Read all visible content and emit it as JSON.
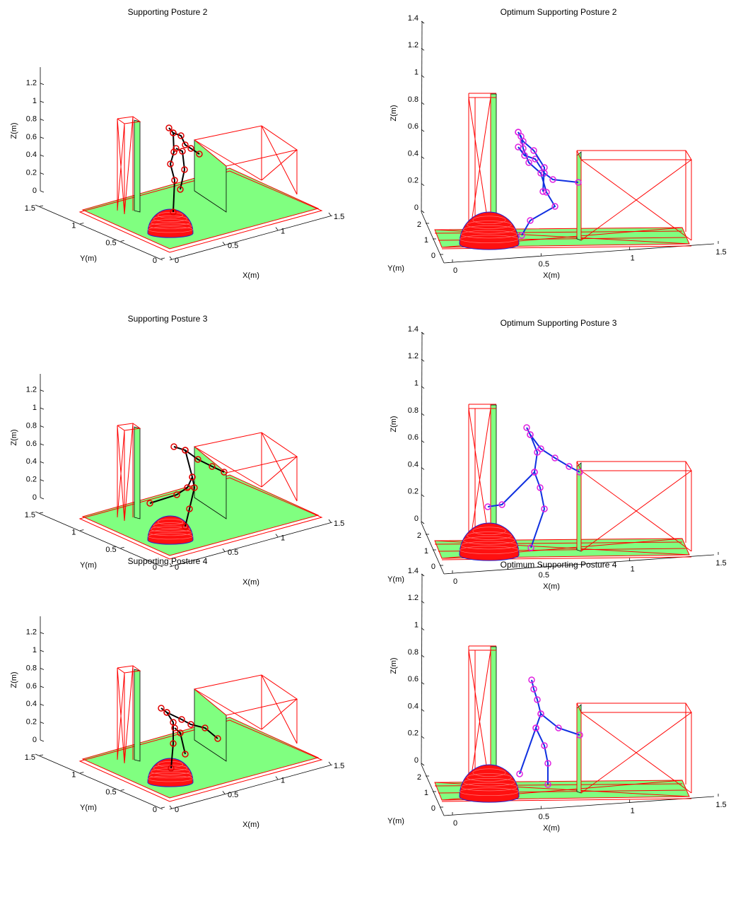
{
  "chart_data": [
    {
      "type": "line3d",
      "title": "Supporting Posture 2",
      "xlabel": "X(m)",
      "ylabel": "Y(m)",
      "zlabel": "Z(m)",
      "xlim": [
        0,
        1.5
      ],
      "ylim": [
        0,
        1.5
      ],
      "zlim": [
        0,
        1.3
      ],
      "xticks": [
        0,
        0.5,
        1,
        1.5
      ],
      "yticks": [
        0,
        0.5,
        1,
        1.5
      ],
      "zticks": [
        0,
        0.2,
        0.4,
        0.6,
        0.8,
        1,
        1.2
      ]
    },
    {
      "type": "line3d",
      "title": "Optimum Supporting Posture 2",
      "xlabel": "X(m)",
      "ylabel": "Y(m)",
      "zlabel": "Z(m)",
      "xlim": [
        0,
        1.5
      ],
      "ylim": [
        0,
        2
      ],
      "zlim": [
        0,
        1.4
      ],
      "xticks": [
        0,
        0.5,
        1,
        1.5
      ],
      "yticks": [
        0,
        1,
        2
      ],
      "zticks": [
        0,
        0.2,
        0.4,
        0.6,
        0.8,
        1,
        1.2,
        1.4
      ]
    },
    {
      "type": "line3d",
      "title": "Supporting Posture 3",
      "xlabel": "X(m)",
      "ylabel": "Y(m)",
      "zlabel": "Z(m)",
      "xlim": [
        0,
        1.5
      ],
      "ylim": [
        0,
        1.5
      ],
      "zlim": [
        0,
        1.3
      ],
      "xticks": [
        0,
        0.5,
        1,
        1.5
      ],
      "yticks": [
        0,
        0.5,
        1,
        1.5
      ],
      "zticks": [
        0,
        0.2,
        0.4,
        0.6,
        0.8,
        1,
        1.2
      ]
    },
    {
      "type": "line3d",
      "title": "Optimum Supporting Posture 3",
      "xlabel": "X(m)",
      "ylabel": "Y(m)",
      "zlabel": "Z(m)",
      "xlim": [
        0,
        1.5
      ],
      "ylim": [
        0,
        2
      ],
      "zlim": [
        0,
        1.4
      ],
      "xticks": [
        0,
        0.5,
        1,
        1.5
      ],
      "yticks": [
        0,
        1,
        2
      ],
      "zticks": [
        0,
        0.2,
        0.4,
        0.6,
        0.8,
        1,
        1.2,
        1.4
      ]
    },
    {
      "type": "line3d",
      "title": "Supporting Posture 4",
      "xlabel": "X(m)",
      "ylabel": "Y(m)",
      "zlabel": "Z(m)",
      "xlim": [
        0,
        1.5
      ],
      "ylim": [
        0,
        1.5
      ],
      "zlim": [
        0,
        1.3
      ],
      "xticks": [
        0,
        0.5,
        1,
        1.5
      ],
      "yticks": [
        0,
        0.5,
        1,
        1.5
      ],
      "zticks": [
        0,
        0.2,
        0.4,
        0.6,
        0.8,
        1,
        1.2
      ]
    },
    {
      "type": "line3d",
      "title": "Optimum Supporting Posture 4",
      "xlabel": "X(m)",
      "ylabel": "Y(m)",
      "zlabel": "Z(m)",
      "xlim": [
        0,
        1.5
      ],
      "ylim": [
        0,
        2
      ],
      "zlim": [
        0,
        1.4
      ],
      "xticks": [
        0,
        0.5,
        1,
        1.5
      ],
      "yticks": [
        0,
        1,
        2
      ],
      "zticks": [
        0,
        0.2,
        0.4,
        0.6,
        0.8,
        1,
        1.2,
        1.4
      ]
    }
  ]
}
